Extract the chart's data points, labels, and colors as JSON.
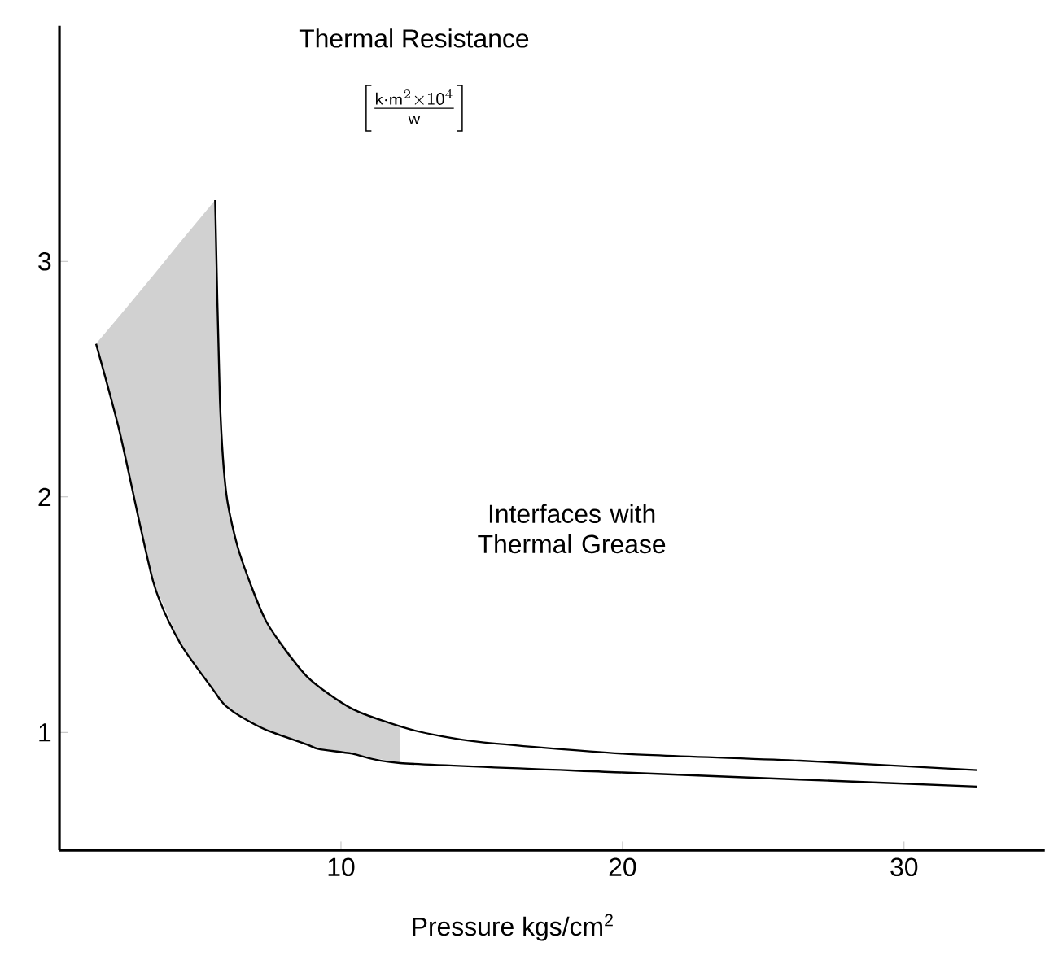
{
  "chart_data": {
    "type": "line",
    "ylabel": "Thermal Resistance",
    "xlabel": "Pressure kgs/cm$^{2}$",
    "annotations": [
      "\\left[\\frac{\\mathsf{k}\\cdot\\mathsf{m}^{2}\\times\\mathsf{10}^{4}}{\\mathsf{w}}\\right]",
      "Interfaces with Thermal Grease"
    ],
    "xlim": [
      0,
      35
    ],
    "ylim": [
      0.5,
      4.0
    ],
    "xticks": [
      10,
      20,
      30
    ],
    "yticks": [
      1,
      2,
      3
    ],
    "marker": "none",
    "series": [
      {
        "color": "#000000",
        "x": [
          5.53,
          5.7,
          5.93,
          6.4,
          7.35,
          8.77,
          10.4,
          12.55,
          14.9,
          20,
          26.3,
          32.6
        ],
        "values": [
          3.26,
          2.41,
          2.01,
          1.76,
          1.47,
          1.24,
          1.1,
          1.01,
          0.96,
          0.91,
          0.88,
          0.84
        ]
      },
      {
        "color": "#000000",
        "x": [
          1.3,
          2.15,
          3.33,
          4.28,
          5.53,
          5.7,
          5.93,
          6.4,
          7.35,
          8.77,
          9.2,
          10.4,
          12.1,
          20,
          26.3,
          32.6
        ],
        "values": [
          2.65,
          2.27,
          1.64,
          1.38,
          1.17,
          1.14,
          1.11,
          1.07,
          1.01,
          0.95,
          0.93,
          0.91,
          0.87,
          0.83,
          0.8,
          0.77
        ],
        "lower": [
          2.65,
          2.27,
          1.64,
          1.38,
          1.17,
          1.14,
          1.11,
          1.07,
          1.01,
          0.95,
          0.93,
          0.91,
          0.87,
          null,
          null,
          null
        ],
        "upper": [
          2.65,
          2.77,
          2.94,
          3.08,
          3.26,
          2.41,
          2.01,
          1.76,
          1.47,
          1.24,
          1.2,
          1.1,
          1.02,
          null,
          null,
          null
        ]
      }
    ]
  }
}
